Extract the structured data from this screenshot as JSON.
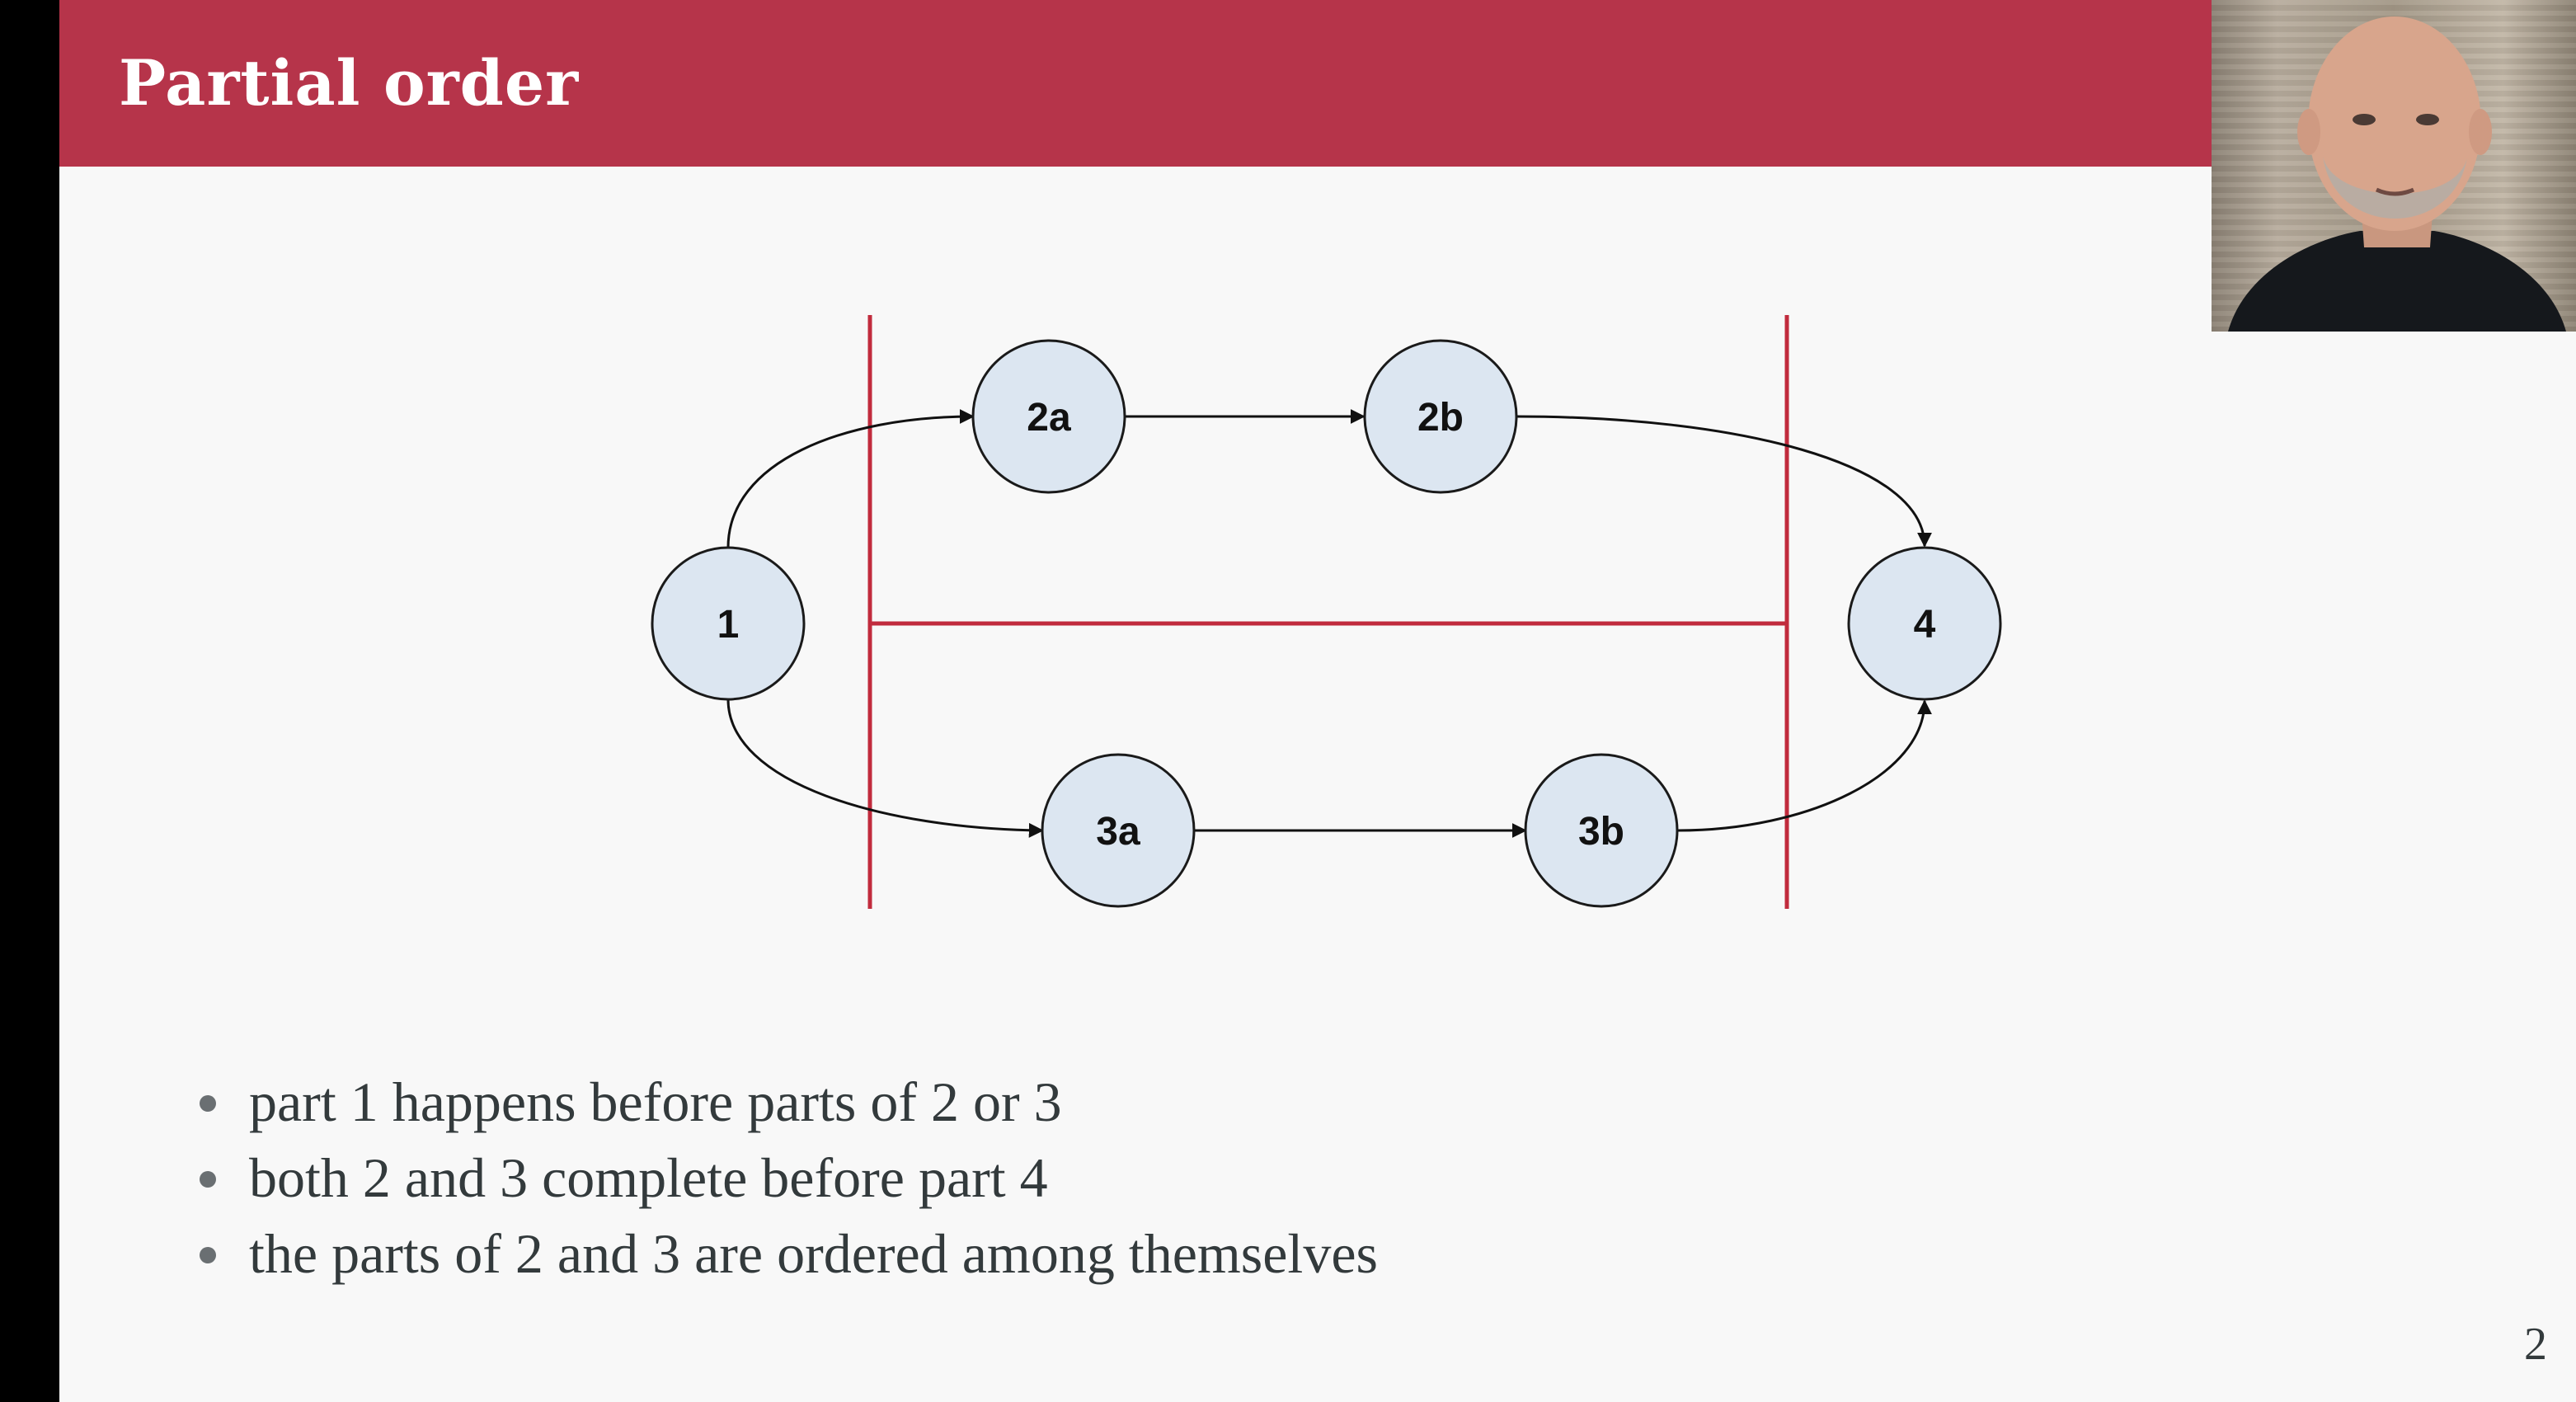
{
  "slide": {
    "title": "Partial order",
    "page_number": "2"
  },
  "diagram": {
    "nodes": [
      {
        "id": "1",
        "label": "1"
      },
      {
        "id": "2a",
        "label": "2a"
      },
      {
        "id": "2b",
        "label": "2b"
      },
      {
        "id": "3a",
        "label": "3a"
      },
      {
        "id": "3b",
        "label": "3b"
      },
      {
        "id": "4",
        "label": "4"
      }
    ],
    "edges": [
      {
        "from": "1",
        "to": "2a"
      },
      {
        "from": "2a",
        "to": "2b"
      },
      {
        "from": "2b",
        "to": "4"
      },
      {
        "from": "1",
        "to": "3a"
      },
      {
        "from": "3a",
        "to": "3b"
      },
      {
        "from": "3b",
        "to": "4"
      }
    ],
    "colors": {
      "node_fill": "#dce6f1",
      "node_stroke": "#1a1a1a",
      "divider": "#c12b3d",
      "edge": "#111111"
    }
  },
  "bullets": [
    "part 1 happens before parts of 2 or 3",
    "both 2 and 3 complete before part 4",
    "the parts of 2 and 3 are ordered among themselves"
  ],
  "colors": {
    "header": "#b6344a",
    "background": "#f8f8f8"
  },
  "webcam": {
    "subject": "presenter video feed"
  }
}
